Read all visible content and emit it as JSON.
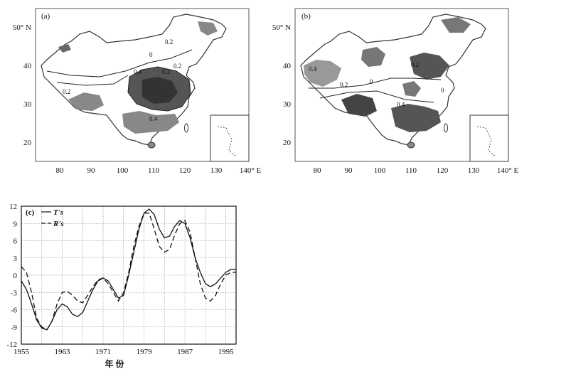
{
  "maps": [
    {
      "label": "(a)",
      "lat_ticks": [
        "50° N",
        "40",
        "30",
        "20"
      ],
      "lon_ticks": [
        "80",
        "90",
        "100",
        "110",
        "120",
        "130",
        "140° E"
      ],
      "contour_labels": [
        "0.2",
        "0",
        "0.2",
        "0.4",
        "0.2",
        "0.4",
        "0.2"
      ]
    },
    {
      "label": "(b)",
      "lat_ticks": [
        "50° N",
        "40",
        "30",
        "20"
      ],
      "lon_ticks": [
        "80",
        "90",
        "100",
        "110",
        "120",
        "130",
        "140° E"
      ],
      "contour_labels": [
        "0.4",
        "0.2",
        "0",
        "0.2",
        "0.4",
        "0"
      ]
    }
  ],
  "chart_data": {
    "type": "line",
    "panel_label": "(c)",
    "xlabel": "年 份",
    "ylabel": "",
    "xlim": [
      1955,
      1997
    ],
    "ylim": [
      -12,
      12
    ],
    "xticks": [
      1955,
      1963,
      1971,
      1979,
      1987,
      1995
    ],
    "yticks": [
      12,
      9,
      6,
      3,
      0,
      -3,
      -6,
      -9,
      -12
    ],
    "grid": true,
    "legend_position": "top-left",
    "x": [
      1955,
      1956,
      1957,
      1958,
      1959,
      1960,
      1961,
      1962,
      1963,
      1964,
      1965,
      1966,
      1967,
      1968,
      1969,
      1970,
      1971,
      1972,
      1973,
      1974,
      1975,
      1976,
      1977,
      1978,
      1979,
      1980,
      1981,
      1982,
      1983,
      1984,
      1985,
      1986,
      1987,
      1988,
      1989,
      1990,
      1991,
      1992,
      1993,
      1994,
      1995,
      1996,
      1997
    ],
    "series": [
      {
        "name": "T's",
        "style": "solid",
        "values": [
          -1,
          -2.5,
          -5,
          -7.8,
          -9.2,
          -9.5,
          -8,
          -6,
          -5,
          -5.5,
          -6.8,
          -7.2,
          -6.5,
          -4.5,
          -2.5,
          -1,
          -0.5,
          -1,
          -2.5,
          -4,
          -3.5,
          0,
          4,
          8,
          10.8,
          11.5,
          10.5,
          8,
          6.5,
          6.8,
          8.5,
          9.5,
          9,
          6.5,
          3,
          0.5,
          -1.5,
          -2,
          -1.5,
          -0.5,
          0.5,
          1,
          1
        ]
      },
      {
        "name": "R's",
        "style": "dashed",
        "values": [
          1.5,
          0.5,
          -3,
          -7.5,
          -9,
          -9.5,
          -8,
          -5,
          -3,
          -2.8,
          -3.5,
          -4.5,
          -4.8,
          -3.5,
          -2,
          -0.8,
          -0.5,
          -1.5,
          -3,
          -4.5,
          -3,
          0.5,
          5,
          8.5,
          10.8,
          10.8,
          8,
          5,
          4,
          4.5,
          7,
          9,
          9.5,
          7.5,
          3,
          -1.5,
          -4,
          -4.5,
          -3.5,
          -1.5,
          0,
          0.5,
          0.5
        ]
      }
    ]
  }
}
